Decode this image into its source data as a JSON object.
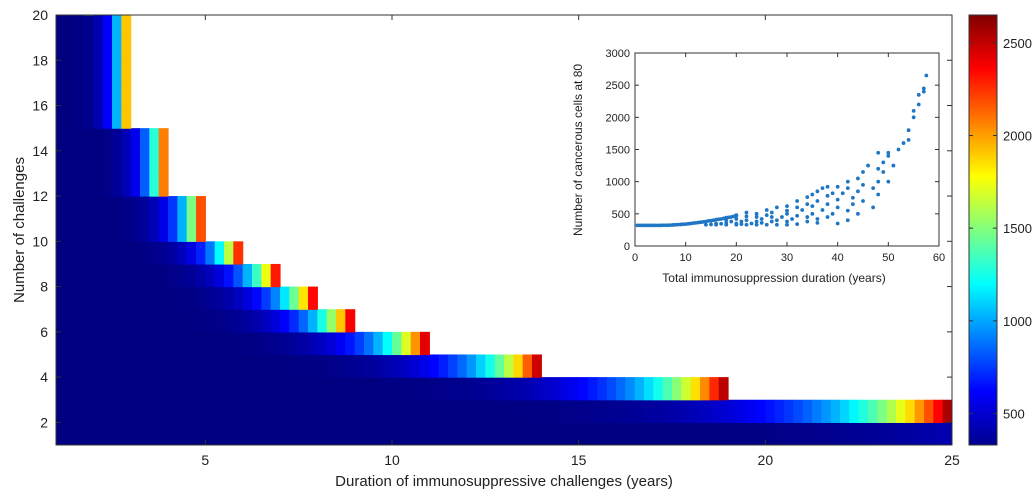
{
  "chart_data": [
    {
      "type": "heatmap",
      "title": "",
      "xlabel": "Duration of immunosuppressive challenges (years)",
      "ylabel": "Number of challenges",
      "xlim": [
        1,
        25
      ],
      "ylim": [
        1,
        20
      ],
      "xticks": [
        5,
        10,
        15,
        20,
        25
      ],
      "yticks": [
        2,
        4,
        6,
        8,
        10,
        12,
        14,
        16,
        18,
        20
      ],
      "colorbar": {
        "min": 330,
        "max": 2650,
        "ticks": [
          500,
          1000,
          1500,
          2000,
          2500
        ],
        "colormap": "jet"
      },
      "valid_region_max_duration_by_challenges": [
        {
          "challenges": 2,
          "max_duration": 25
        },
        {
          "challenges": 3,
          "max_duration": 19
        },
        {
          "challenges": 4,
          "max_duration": 14
        },
        {
          "challenges": 5,
          "max_duration": 11
        },
        {
          "challenges": 6,
          "max_duration": 9
        },
        {
          "challenges": 7,
          "max_duration": 8
        },
        {
          "challenges": 8,
          "max_duration": 7
        },
        {
          "challenges": 9,
          "max_duration": 6
        },
        {
          "challenges": 10,
          "max_duration": 5
        },
        {
          "challenges": 11,
          "max_duration": 5
        },
        {
          "challenges": 12,
          "max_duration": 4
        },
        {
          "challenges": 13,
          "max_duration": 4
        },
        {
          "challenges": 14,
          "max_duration": 4
        },
        {
          "challenges": 15,
          "max_duration": 3
        },
        {
          "challenges": 16,
          "max_duration": 3
        },
        {
          "challenges": 17,
          "max_duration": 3
        },
        {
          "challenges": 18,
          "max_duration": 3
        },
        {
          "challenges": 19,
          "max_duration": 3
        },
        {
          "challenges": 20,
          "max_duration": 2
        }
      ],
      "value_model": "cancerous cells grow with total immunosuppression duration (challenges x duration), peaking at the edge of the valid region"
    },
    {
      "type": "scatter",
      "title": "",
      "xlabel": "Total immunosuppression duration (years)",
      "ylabel": "Number of cancerous cells at 80",
      "xlim": [
        0,
        60
      ],
      "ylim": [
        0,
        3000
      ],
      "xticks": [
        0,
        10,
        20,
        30,
        40,
        50,
        60
      ],
      "yticks": [
        0,
        500,
        1000,
        1500,
        2000,
        2500,
        3000
      ],
      "color": "#1f77c4",
      "points": [
        [
          0.5,
          320
        ],
        [
          1,
          320
        ],
        [
          1.5,
          320
        ],
        [
          2,
          320
        ],
        [
          2.5,
          320
        ],
        [
          3,
          320
        ],
        [
          3.5,
          320
        ],
        [
          4,
          320
        ],
        [
          4.5,
          320
        ],
        [
          5,
          320
        ],
        [
          5.5,
          322
        ],
        [
          6,
          322
        ],
        [
          6.5,
          323
        ],
        [
          7,
          325
        ],
        [
          7.5,
          327
        ],
        [
          8,
          330
        ],
        [
          8.5,
          332
        ],
        [
          9,
          335
        ],
        [
          9.5,
          338
        ],
        [
          10,
          340
        ],
        [
          10.5,
          345
        ],
        [
          11,
          350
        ],
        [
          11.5,
          355
        ],
        [
          12,
          360
        ],
        [
          12.5,
          365
        ],
        [
          13,
          370
        ],
        [
          13.5,
          375
        ],
        [
          14,
          380
        ],
        [
          14.5,
          390
        ],
        [
          15,
          395
        ],
        [
          15.5,
          400
        ],
        [
          16,
          410
        ],
        [
          16.5,
          415
        ],
        [
          17,
          420
        ],
        [
          17.5,
          430
        ],
        [
          18,
          440
        ],
        [
          18.5,
          445
        ],
        [
          19,
          450
        ],
        [
          19.5,
          460
        ],
        [
          20,
          470
        ],
        [
          14,
          330
        ],
        [
          15,
          335
        ],
        [
          16,
          330
        ],
        [
          16,
          350
        ],
        [
          17,
          345
        ],
        [
          18,
          330
        ],
        [
          18,
          360
        ],
        [
          18,
          400
        ],
        [
          19,
          380
        ],
        [
          20,
          330
        ],
        [
          20,
          350
        ],
        [
          20,
          420
        ],
        [
          20,
          480
        ],
        [
          21,
          340
        ],
        [
          21,
          380
        ],
        [
          22,
          330
        ],
        [
          22,
          400
        ],
        [
          22,
          460
        ],
        [
          22,
          520
        ],
        [
          23,
          350
        ],
        [
          24,
          330
        ],
        [
          24,
          380
        ],
        [
          24,
          450
        ],
        [
          24,
          500
        ],
        [
          25,
          360
        ],
        [
          25,
          420
        ],
        [
          26,
          330
        ],
        [
          26,
          480
        ],
        [
          26,
          560
        ],
        [
          27,
          380
        ],
        [
          27,
          450
        ],
        [
          27,
          520
        ],
        [
          28,
          330
        ],
        [
          28,
          400
        ],
        [
          28,
          600
        ],
        [
          29,
          450
        ],
        [
          30,
          330
        ],
        [
          30,
          380
        ],
        [
          30,
          500
        ],
        [
          30,
          550
        ],
        [
          30,
          620
        ],
        [
          31,
          420
        ],
        [
          32,
          340
        ],
        [
          32,
          470
        ],
        [
          32,
          600
        ],
        [
          32,
          700
        ],
        [
          33,
          560
        ],
        [
          34,
          380
        ],
        [
          34,
          450
        ],
        [
          34,
          650
        ],
        [
          34,
          760
        ],
        [
          35,
          500
        ],
        [
          35,
          620
        ],
        [
          35,
          800
        ],
        [
          36,
          360
        ],
        [
          36,
          420
        ],
        [
          36,
          700
        ],
        [
          36,
          850
        ],
        [
          37,
          560
        ],
        [
          37,
          900
        ],
        [
          38,
          450
        ],
        [
          38,
          650
        ],
        [
          38,
          780
        ],
        [
          38,
          920
        ],
        [
          39,
          500
        ],
        [
          39,
          820
        ],
        [
          40,
          350
        ],
        [
          40,
          600
        ],
        [
          40,
          720
        ],
        [
          40,
          920
        ],
        [
          41,
          820
        ],
        [
          42,
          400
        ],
        [
          42,
          550
        ],
        [
          42,
          900
        ],
        [
          42,
          1000
        ],
        [
          43,
          650
        ],
        [
          43,
          750
        ],
        [
          44,
          500
        ],
        [
          44,
          850
        ],
        [
          44,
          1050
        ],
        [
          45,
          700
        ],
        [
          45,
          950
        ],
        [
          45,
          1150
        ],
        [
          46,
          1250
        ],
        [
          47,
          600
        ],
        [
          47,
          900
        ],
        [
          48,
          800
        ],
        [
          48,
          1000
        ],
        [
          48,
          1200
        ],
        [
          48,
          1450
        ],
        [
          49,
          1150
        ],
        [
          49,
          1300
        ],
        [
          50,
          1000
        ],
        [
          50,
          1400
        ],
        [
          50,
          1450
        ],
        [
          51,
          1250
        ],
        [
          52,
          1500
        ],
        [
          53,
          1600
        ],
        [
          54,
          1650
        ],
        [
          54,
          1800
        ],
        [
          55,
          2000
        ],
        [
          55,
          2100
        ],
        [
          56,
          2200
        ],
        [
          56,
          2350
        ],
        [
          57,
          2400
        ],
        [
          57,
          2450
        ],
        [
          57.5,
          2650
        ]
      ]
    }
  ]
}
